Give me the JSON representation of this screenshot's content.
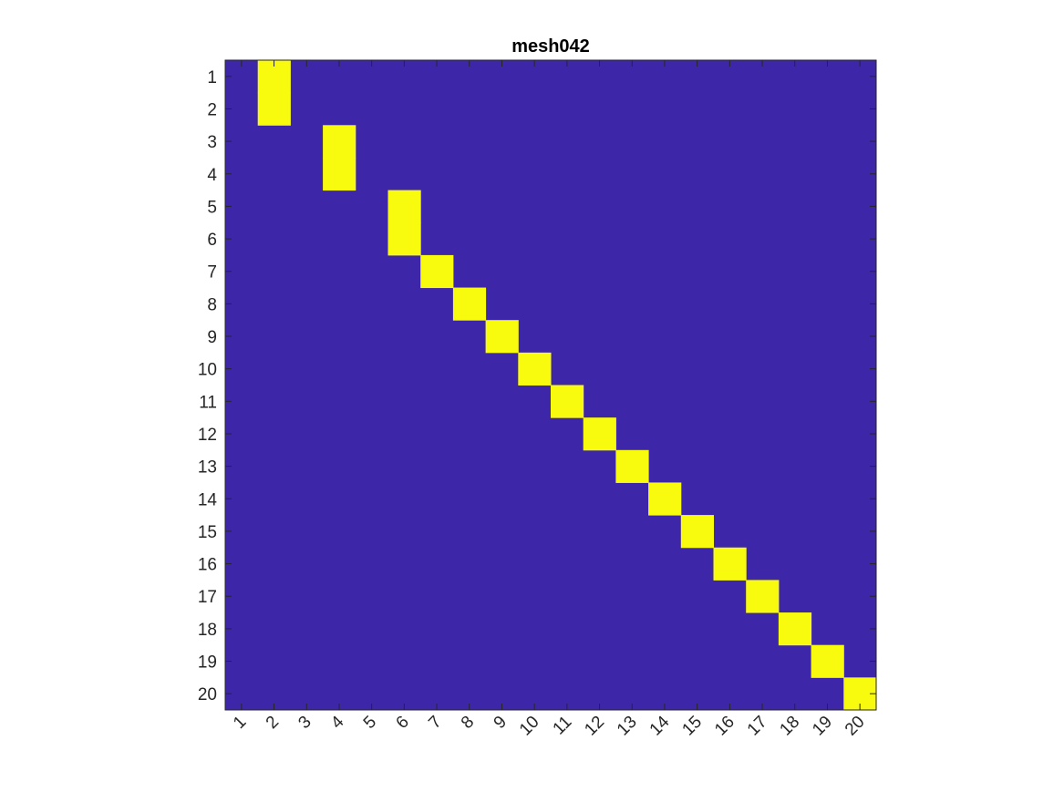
{
  "chart_data": {
    "type": "heatmap",
    "title": "mesh042",
    "xlabel": "",
    "ylabel": "",
    "rows": [
      "1",
      "2",
      "3",
      "4",
      "5",
      "6",
      "7",
      "8",
      "9",
      "10",
      "11",
      "12",
      "13",
      "14",
      "15",
      "16",
      "17",
      "18",
      "19",
      "20"
    ],
    "cols": [
      "1",
      "2",
      "3",
      "4",
      "5",
      "6",
      "7",
      "8",
      "9",
      "10",
      "11",
      "12",
      "13",
      "14",
      "15",
      "16",
      "17",
      "18",
      "19",
      "20"
    ],
    "cells": [
      {
        "row": 1,
        "col": 2,
        "value": 1
      },
      {
        "row": 2,
        "col": 2,
        "value": 1
      },
      {
        "row": 3,
        "col": 4,
        "value": 1
      },
      {
        "row": 4,
        "col": 4,
        "value": 1
      },
      {
        "row": 5,
        "col": 6,
        "value": 1
      },
      {
        "row": 6,
        "col": 6,
        "value": 1
      },
      {
        "row": 7,
        "col": 7,
        "value": 1
      },
      {
        "row": 8,
        "col": 8,
        "value": 1
      },
      {
        "row": 9,
        "col": 9,
        "value": 1
      },
      {
        "row": 10,
        "col": 10,
        "value": 1
      },
      {
        "row": 11,
        "col": 11,
        "value": 1
      },
      {
        "row": 12,
        "col": 12,
        "value": 1
      },
      {
        "row": 13,
        "col": 13,
        "value": 1
      },
      {
        "row": 14,
        "col": 14,
        "value": 1
      },
      {
        "row": 15,
        "col": 15,
        "value": 1
      },
      {
        "row": 16,
        "col": 16,
        "value": 1
      },
      {
        "row": 17,
        "col": 17,
        "value": 1
      },
      {
        "row": 18,
        "col": 18,
        "value": 1
      },
      {
        "row": 19,
        "col": 19,
        "value": 1
      },
      {
        "row": 20,
        "col": 20,
        "value": 1
      }
    ],
    "default_value": 0,
    "colors": {
      "low": "#3e26a8",
      "high": "#f9fb0e",
      "axis": "#262626"
    },
    "grid": false,
    "legend": "none"
  }
}
